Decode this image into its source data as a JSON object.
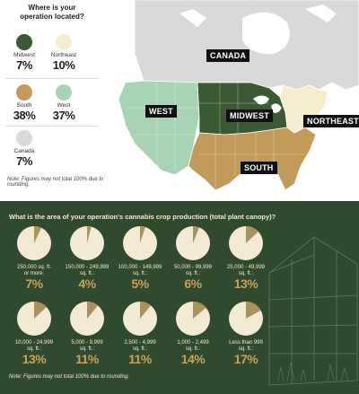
{
  "colors": {
    "midwest": "#3b5a34",
    "northeast": "#f5ecd0",
    "south": "#c29b5a",
    "west": "#a9d3b5",
    "canada": "#d9d9d9",
    "crop_bg": "#2f4a2e",
    "pie_fill": "#f2ead3",
    "pie_slice": "#a8935e"
  },
  "legend": {
    "title_line1": "Where is your",
    "title_line2": "operation located?",
    "items": [
      {
        "key": "midwest",
        "label": "Midwest",
        "value": "7%"
      },
      {
        "key": "northeast",
        "label": "Northeast",
        "value": "10%"
      },
      {
        "key": "south",
        "label": "South",
        "value": "38%"
      },
      {
        "key": "west",
        "label": "West",
        "value": "37%"
      },
      {
        "key": "canada",
        "label": "Canada",
        "value": "7%"
      }
    ],
    "note": "Note: Figures may not total 100% due to rounding."
  },
  "map_labels": {
    "canada": "CANADA",
    "west": "WEST",
    "midwest": "MIDWEST",
    "northeast": "NORTHEAST",
    "south": "SOUTH"
  },
  "crop": {
    "title": "What is the area of your operation's cannabis crop production (total plant canopy)?",
    "note": "Note: Figures may not total 100% due to rounding.",
    "items": [
      {
        "label_line1": "250,000 sq. ft.",
        "label_line2": "or more:",
        "value": "7%",
        "pct": 7
      },
      {
        "label_line1": "150,000 - 249,999",
        "label_line2": "sq. ft.:",
        "value": "4%",
        "pct": 4
      },
      {
        "label_line1": "100,000 - 149,999",
        "label_line2": "sq. ft.:",
        "value": "5%",
        "pct": 5
      },
      {
        "label_line1": "50,000 - 99,999",
        "label_line2": "sq. ft.:",
        "value": "6%",
        "pct": 6
      },
      {
        "label_line1": "25,000 - 49,999",
        "label_line2": "sq. ft.:",
        "value": "13%",
        "pct": 13
      },
      {
        "label_line1": "10,000 - 24,999",
        "label_line2": "sq. ft.:",
        "value": "13%",
        "pct": 13
      },
      {
        "label_line1": "5,000 - 9,999",
        "label_line2": "sq. ft.:",
        "value": "11%",
        "pct": 11
      },
      {
        "label_line1": "2,500 - 4,999",
        "label_line2": "sq. ft.:",
        "value": "11%",
        "pct": 11
      },
      {
        "label_line1": "1,000 - 2,499",
        "label_line2": "sq. ft.:",
        "value": "14%",
        "pct": 14
      },
      {
        "label_line1": "Less than 999",
        "label_line2": "sq. ft.:",
        "value": "17%",
        "pct": 17
      }
    ]
  }
}
